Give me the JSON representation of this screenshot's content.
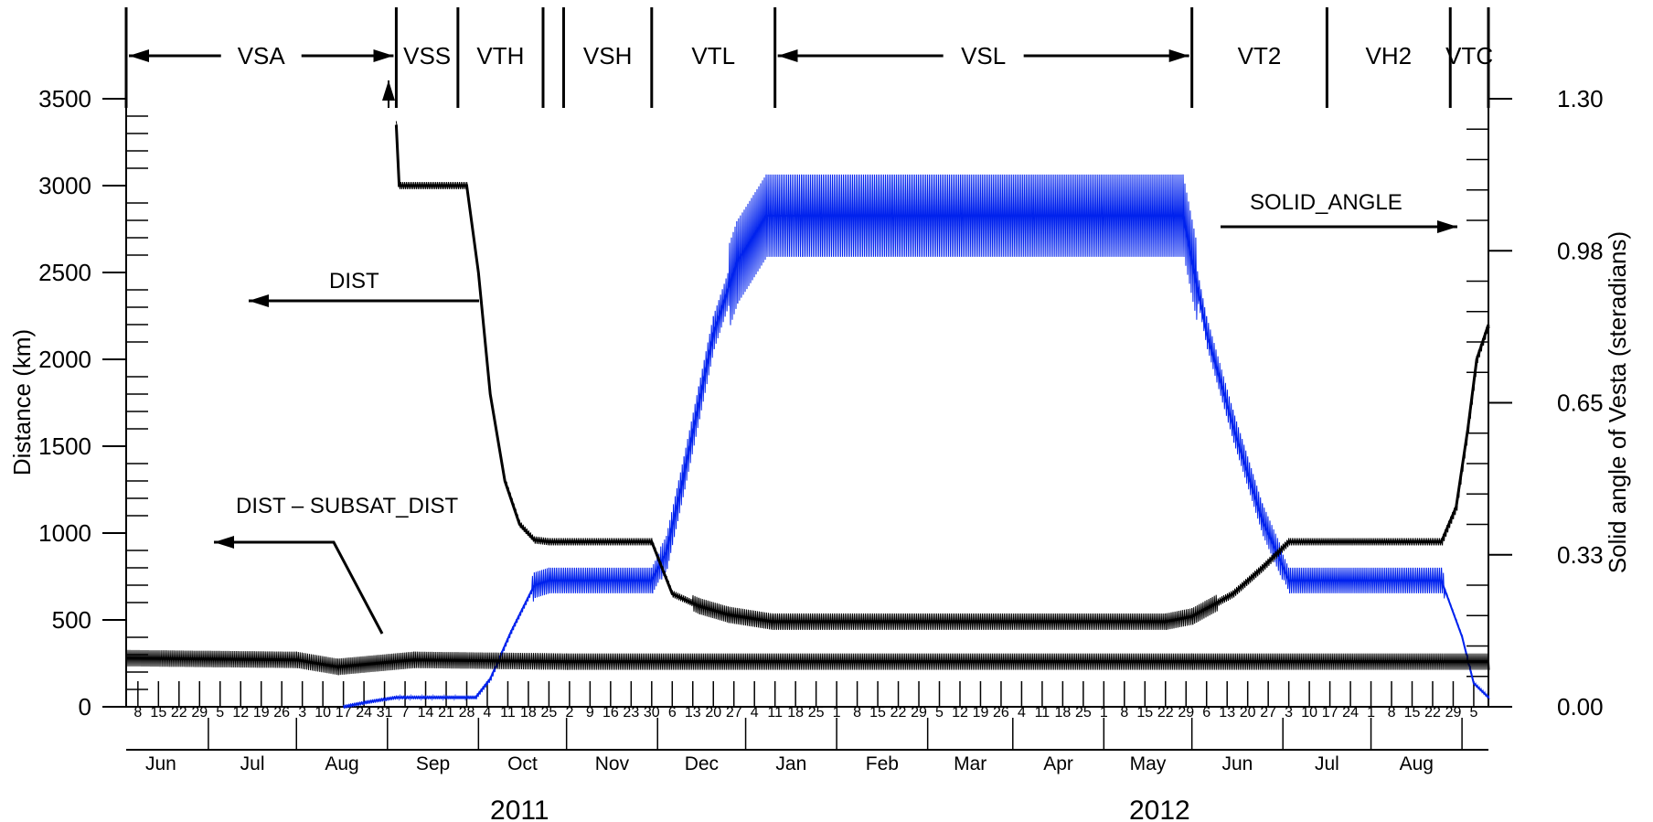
{
  "chart_data": {
    "type": "line",
    "title": "",
    "ylabel_left": "Distance (km)",
    "ylabel_right": "Solid angle of Vesta (steradians)",
    "ylim_left": [
      0,
      3500
    ],
    "ylim_right": [
      0.0,
      1.3
    ],
    "left_ticks": [
      0,
      500,
      1000,
      1500,
      2000,
      2500,
      3000,
      3500
    ],
    "right_ticks": [
      "0.00",
      "0.33",
      "0.65",
      "0.98",
      "1.30"
    ],
    "right_tick_values": [
      0.0,
      0.325,
      0.65,
      0.975,
      1.3
    ],
    "x_axis": {
      "type": "date",
      "xlim": [
        "2011-05-04",
        "2012-08-10"
      ],
      "years": [
        {
          "label": "2011",
          "center": "2011-09-15"
        },
        {
          "label": "2012",
          "center": "2012-04-20"
        }
      ],
      "months": [
        {
          "label": "Jun",
          "date": "2011-06-01"
        },
        {
          "label": "Jul",
          "date": "2011-07-01"
        },
        {
          "label": "Aug",
          "date": "2011-08-01"
        },
        {
          "label": "Sep",
          "date": "2011-09-01"
        },
        {
          "label": "Oct",
          "date": "2011-10-01"
        },
        {
          "label": "Nov",
          "date": "2011-11-01"
        },
        {
          "label": "Dec",
          "date": "2011-12-01"
        },
        {
          "label": "Jan",
          "date": "2012-01-01"
        },
        {
          "label": "Feb",
          "date": "2012-02-01"
        },
        {
          "label": "Mar",
          "date": "2012-03-01"
        },
        {
          "label": "Apr",
          "date": "2012-04-01"
        },
        {
          "label": "May",
          "date": "2012-05-01"
        },
        {
          "label": "Jun",
          "date": "2012-06-01"
        },
        {
          "label": "Jul",
          "date": "2012-07-01"
        },
        {
          "label": "Aug",
          "date": "2012-08-01"
        }
      ],
      "week_ticks": [
        {
          "label": "8",
          "date": "2011-05-08"
        },
        {
          "label": "15",
          "date": "2011-05-15"
        },
        {
          "label": "22",
          "date": "2011-05-22"
        },
        {
          "label": "29",
          "date": "2011-05-29"
        },
        {
          "label": "5",
          "date": "2011-06-05"
        },
        {
          "label": "12",
          "date": "2011-06-12"
        },
        {
          "label": "19",
          "date": "2011-06-19"
        },
        {
          "label": "26",
          "date": "2011-06-26"
        },
        {
          "label": "3",
          "date": "2011-07-03"
        },
        {
          "label": "10",
          "date": "2011-07-10"
        },
        {
          "label": "17",
          "date": "2011-07-17"
        },
        {
          "label": "24",
          "date": "2011-07-24"
        },
        {
          "label": "31",
          "date": "2011-07-31"
        },
        {
          "label": "7",
          "date": "2011-08-07"
        },
        {
          "label": "14",
          "date": "2011-08-14"
        },
        {
          "label": "21",
          "date": "2011-08-21"
        },
        {
          "label": "28",
          "date": "2011-08-28"
        },
        {
          "label": "4",
          "date": "2011-09-04"
        },
        {
          "label": "11",
          "date": "2011-09-11"
        },
        {
          "label": "18",
          "date": "2011-09-18"
        },
        {
          "label": "25",
          "date": "2011-09-25"
        },
        {
          "label": "2",
          "date": "2011-10-02"
        },
        {
          "label": "9",
          "date": "2011-10-09"
        },
        {
          "label": "16",
          "date": "2011-10-16"
        },
        {
          "label": "23",
          "date": "2011-10-23"
        },
        {
          "label": "30",
          "date": "2011-10-30"
        },
        {
          "label": "6",
          "date": "2011-11-06"
        },
        {
          "label": "13",
          "date": "2011-11-13"
        },
        {
          "label": "20",
          "date": "2011-11-20"
        },
        {
          "label": "27",
          "date": "2011-11-27"
        },
        {
          "label": "4",
          "date": "2011-12-04"
        },
        {
          "label": "11",
          "date": "2011-12-11"
        },
        {
          "label": "18",
          "date": "2011-12-18"
        },
        {
          "label": "25",
          "date": "2011-12-25"
        },
        {
          "label": "1",
          "date": "2012-01-01"
        },
        {
          "label": "8",
          "date": "2012-01-08"
        },
        {
          "label": "15",
          "date": "2012-01-15"
        },
        {
          "label": "22",
          "date": "2012-01-22"
        },
        {
          "label": "29",
          "date": "2012-01-29"
        },
        {
          "label": "5",
          "date": "2012-02-05"
        },
        {
          "label": "12",
          "date": "2012-02-12"
        },
        {
          "label": "19",
          "date": "2012-02-19"
        },
        {
          "label": "26",
          "date": "2012-02-26"
        },
        {
          "label": "4",
          "date": "2012-03-04"
        },
        {
          "label": "11",
          "date": "2012-03-11"
        },
        {
          "label": "18",
          "date": "2012-03-18"
        },
        {
          "label": "25",
          "date": "2012-03-25"
        },
        {
          "label": "1",
          "date": "2012-04-01"
        },
        {
          "label": "8",
          "date": "2012-04-08"
        },
        {
          "label": "15",
          "date": "2012-04-15"
        },
        {
          "label": "22",
          "date": "2012-04-22"
        },
        {
          "label": "29",
          "date": "2012-04-29"
        },
        {
          "label": "6",
          "date": "2012-05-06"
        },
        {
          "label": "13",
          "date": "2012-05-13"
        },
        {
          "label": "20",
          "date": "2012-05-20"
        },
        {
          "label": "27",
          "date": "2012-05-27"
        },
        {
          "label": "3",
          "date": "2012-06-03"
        },
        {
          "label": "10",
          "date": "2012-06-10"
        },
        {
          "label": "17",
          "date": "2012-06-17"
        },
        {
          "label": "24",
          "date": "2012-06-24"
        },
        {
          "label": "1",
          "date": "2012-07-01"
        },
        {
          "label": "8",
          "date": "2012-07-08"
        },
        {
          "label": "15",
          "date": "2012-07-15"
        },
        {
          "label": "22",
          "date": "2012-07-22"
        },
        {
          "label": "29",
          "date": "2012-07-29"
        },
        {
          "label": "5",
          "date": "2012-08-05"
        }
      ]
    },
    "phases": [
      {
        "label": "VSA",
        "start": "2011-05-04",
        "end": "2011-08-04",
        "arrows": true
      },
      {
        "label": "VSS",
        "start": "2011-08-04",
        "end": "2011-08-25"
      },
      {
        "label": "VTH",
        "start": "2011-08-25",
        "end": "2011-09-23"
      },
      {
        "label": "VSH",
        "start": "2011-09-30",
        "end": "2011-10-30"
      },
      {
        "label": "VTL",
        "start": "2011-10-30",
        "end": "2011-12-11"
      },
      {
        "label": "VSL",
        "start": "2011-12-11",
        "end": "2012-05-01",
        "arrows": true
      },
      {
        "label": "VT2",
        "start": "2012-05-01",
        "end": "2012-06-16"
      },
      {
        "label": "VH2",
        "start": "2012-06-16",
        "end": "2012-07-28"
      },
      {
        "label": "VTC",
        "start": "2012-07-28",
        "end": "2012-08-10"
      }
    ],
    "phase_boundaries": [
      "2011-08-04",
      "2011-08-25",
      "2011-09-23",
      "2011-09-30",
      "2011-10-30",
      "2011-12-11",
      "2012-05-01",
      "2012-06-16",
      "2012-07-28",
      "2012-08-10"
    ],
    "series": [
      {
        "name": "DIST",
        "axis": "left",
        "color": "#000000",
        "points": [
          [
            "2011-08-04",
            3350
          ],
          [
            "2011-08-05",
            3000
          ],
          [
            "2011-08-28",
            3000
          ],
          [
            "2011-09-01",
            2500
          ],
          [
            "2011-09-05",
            1800
          ],
          [
            "2011-09-10",
            1300
          ],
          [
            "2011-09-15",
            1050
          ],
          [
            "2011-09-20",
            960
          ],
          [
            "2011-09-25",
            950
          ],
          [
            "2011-10-30",
            950
          ],
          [
            "2011-11-06",
            650
          ],
          [
            "2011-11-15",
            580
          ],
          [
            "2011-11-25",
            530
          ],
          [
            "2011-12-10",
            490
          ],
          [
            "2012-04-22",
            490
          ],
          [
            "2012-05-01",
            520
          ],
          [
            "2012-05-15",
            650
          ],
          [
            "2012-05-25",
            800
          ],
          [
            "2012-06-03",
            950
          ],
          [
            "2012-07-25",
            950
          ],
          [
            "2012-07-30",
            1150
          ],
          [
            "2012-08-03",
            1600
          ],
          [
            "2012-08-06",
            2000
          ],
          [
            "2012-08-10",
            2200
          ]
        ]
      },
      {
        "name": "DIST – SUBSAT_DIST",
        "axis": "left",
        "color": "#000000",
        "points": [
          [
            "2011-05-04",
            280
          ],
          [
            "2011-07-01",
            270
          ],
          [
            "2011-07-15",
            230
          ],
          [
            "2011-08-10",
            270
          ],
          [
            "2011-10-01",
            260
          ],
          [
            "2012-05-01",
            260
          ],
          [
            "2012-08-10",
            260
          ]
        ]
      },
      {
        "name": "SOLID_ANGLE",
        "axis": "right",
        "color": "#0022ee",
        "points": [
          [
            "2011-07-17",
            0.0
          ],
          [
            "2011-07-25",
            0.01
          ],
          [
            "2011-08-04",
            0.02
          ],
          [
            "2011-08-31",
            0.02
          ],
          [
            "2011-09-05",
            0.06
          ],
          [
            "2011-09-12",
            0.16
          ],
          [
            "2011-09-20",
            0.26
          ],
          [
            "2011-09-25",
            0.27
          ],
          [
            "2011-10-30",
            0.27
          ],
          [
            "2011-11-04",
            0.33
          ],
          [
            "2011-11-10",
            0.5
          ],
          [
            "2011-11-15",
            0.65
          ],
          [
            "2011-11-20",
            0.8
          ],
          [
            "2011-11-28",
            0.95
          ],
          [
            "2011-12-08",
            1.05
          ],
          [
            "2011-12-20",
            1.05
          ],
          [
            "2012-04-28",
            1.05
          ],
          [
            "2012-05-06",
            0.8
          ],
          [
            "2012-05-15",
            0.6
          ],
          [
            "2012-05-25",
            0.4
          ],
          [
            "2012-06-03",
            0.27
          ],
          [
            "2012-07-25",
            0.27
          ],
          [
            "2012-08-01",
            0.15
          ],
          [
            "2012-08-05",
            0.05
          ],
          [
            "2012-08-10",
            0.02
          ]
        ]
      }
    ],
    "annotations": [
      {
        "text": "DIST"
      },
      {
        "text": "DIST – SUBSAT_DIST"
      },
      {
        "text": "SOLID_ANGLE"
      }
    ]
  }
}
